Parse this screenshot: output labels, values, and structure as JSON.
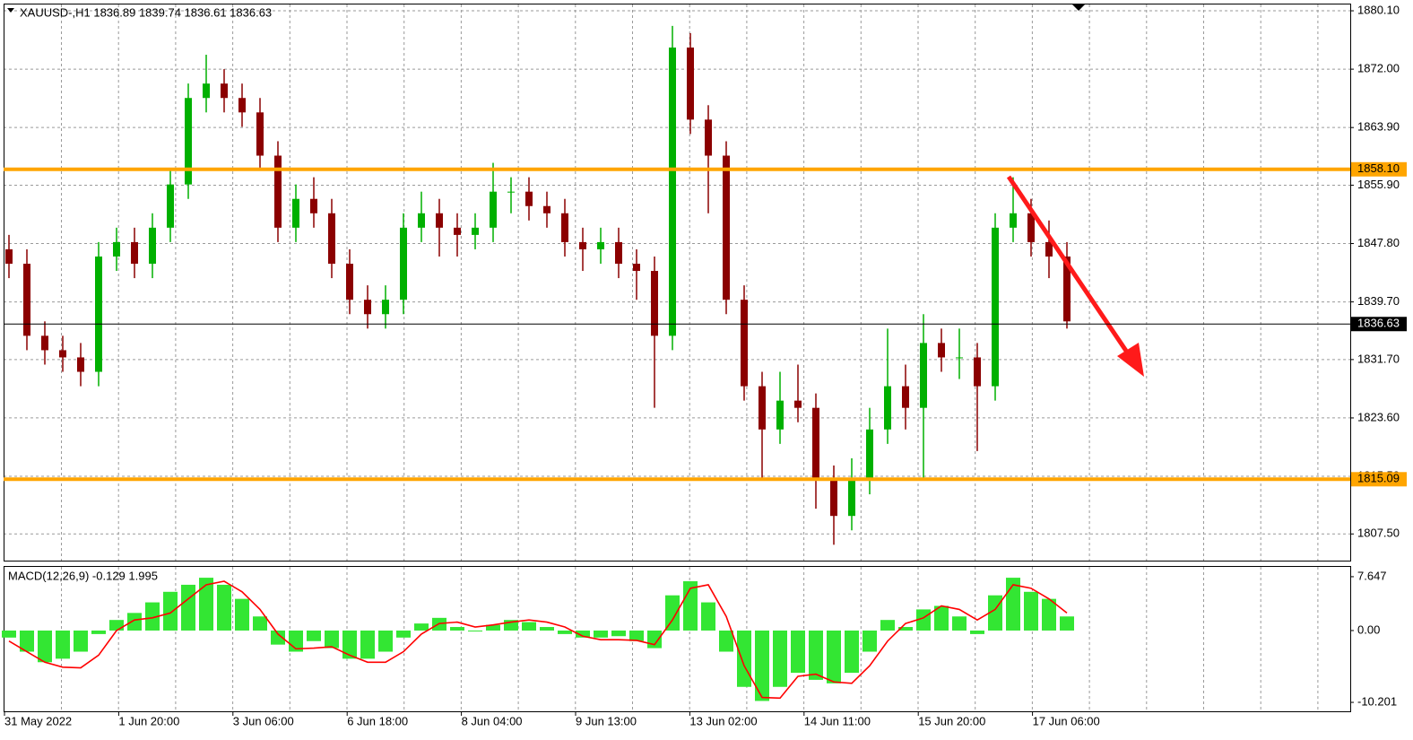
{
  "chart_data": [
    {
      "type": "candlestick",
      "title": "XAUUSD-,H1  1836.89 1839.74 1836.61 1836.63",
      "up_color": "#00b000",
      "down_color": "#8b0000",
      "open": [
        1847,
        1845,
        1835,
        1833,
        1832,
        1830,
        1846,
        1848,
        1845,
        1850,
        1856,
        1868,
        1870,
        1868,
        1866,
        1860,
        1850,
        1854,
        1852,
        1845,
        1840,
        1838,
        1840,
        1850,
        1852,
        1850,
        1849,
        1850,
        1855,
        1855,
        1853,
        1852,
        1848,
        1847,
        1848,
        1845,
        1844,
        1835,
        1875,
        1865,
        1860,
        1840,
        1828,
        1822,
        1826,
        1825,
        1815,
        1810,
        1815,
        1822,
        1828,
        1825,
        1834,
        1832,
        1832,
        1828,
        1850,
        1852,
        1848,
        1846
      ],
      "high": [
        1849,
        1847,
        1837,
        1835,
        1834,
        1848,
        1850,
        1850,
        1852,
        1858,
        1870,
        1874,
        1872,
        1870,
        1868,
        1862,
        1856,
        1857,
        1854,
        1847,
        1842,
        1842,
        1852,
        1855,
        1854,
        1852,
        1852,
        1859,
        1857,
        1857,
        1855,
        1854,
        1850,
        1850,
        1850,
        1847,
        1846,
        1878,
        1877,
        1867,
        1862,
        1842,
        1830,
        1830,
        1831,
        1827,
        1817,
        1818,
        1825,
        1836,
        1831,
        1838,
        1836,
        1836,
        1834,
        1852,
        1857,
        1854,
        1851,
        1848
      ],
      "low": [
        1843,
        1833,
        1831,
        1830,
        1828,
        1828,
        1844,
        1843,
        1843,
        1848,
        1854,
        1866,
        1866,
        1864,
        1858,
        1848,
        1848,
        1850,
        1843,
        1838,
        1836,
        1836,
        1838,
        1848,
        1846,
        1846,
        1847,
        1848,
        1852,
        1851,
        1850,
        1846,
        1844,
        1845,
        1843,
        1840,
        1825,
        1833,
        1863,
        1852,
        1838,
        1826,
        1815,
        1820,
        1823,
        1811,
        1806,
        1808,
        1813,
        1820,
        1822,
        1815,
        1830,
        1829,
        1819,
        1826,
        1848,
        1846,
        1843,
        1836
      ],
      "close": [
        1845,
        1835,
        1833,
        1832,
        1830,
        1846,
        1848,
        1845,
        1850,
        1856,
        1868,
        1870,
        1868,
        1866,
        1860,
        1850,
        1854,
        1852,
        1845,
        1840,
        1838,
        1840,
        1850,
        1852,
        1850,
        1849,
        1850,
        1855,
        1855,
        1853,
        1852,
        1848,
        1847,
        1848,
        1845,
        1844,
        1835,
        1875,
        1865,
        1860,
        1840,
        1828,
        1822,
        1826,
        1825,
        1815,
        1810,
        1815,
        1822,
        1828,
        1825,
        1834,
        1832,
        1832,
        1828,
        1850,
        1852,
        1848,
        1846,
        1837
      ],
      "ylim": [
        1803.8,
        1881.1
      ],
      "yticks": [
        {
          "value": 1880.1,
          "label": "1880.10"
        },
        {
          "value": 1872,
          "label": "1872.00"
        },
        {
          "value": 1863.9,
          "label": "1863.90"
        },
        {
          "value": 1855.9,
          "label": "1855.90"
        },
        {
          "value": 1847.8,
          "label": "1847.80"
        },
        {
          "value": 1839.7,
          "label": "1839.70"
        },
        {
          "value": 1831.7,
          "label": "1831.70"
        },
        {
          "value": 1823.6,
          "label": "1823.60"
        },
        {
          "value": 1815.5,
          "label": "1815.50"
        },
        {
          "value": 1807.5,
          "label": "1807.50"
        }
      ],
      "levels": [
        {
          "value": 1858.1,
          "label": "1858.10",
          "color": "#ffa500"
        },
        {
          "value": 1815.09,
          "label": "1815.09",
          "color": "#ffa500"
        }
      ],
      "current_price": {
        "value": 1836.63,
        "label": "1836.63"
      },
      "grid": true
    },
    {
      "type": "macd",
      "title": "MACD(12,26,9) -0.129 1.995",
      "histogram_color": "#33e633",
      "signal_color": "#ff0000",
      "histogram": [
        -1,
        -3,
        -4.5,
        -4,
        -3,
        -0.5,
        1.5,
        2.5,
        4,
        5.5,
        6.5,
        7.5,
        6.5,
        4.5,
        2,
        -2,
        -3,
        -1.5,
        -2.5,
        -4,
        -4,
        -3,
        -1,
        1,
        1.8,
        0.5,
        0,
        0.8,
        1.5,
        1.2,
        0.5,
        -0.5,
        -1,
        -1,
        -0.8,
        -1.5,
        -2.5,
        5,
        7,
        4,
        -3,
        -8,
        -10,
        -8,
        -6,
        -7,
        -7.5,
        -6,
        -3,
        1.5,
        0.5,
        3,
        3.5,
        2,
        -0.5,
        5,
        7.5,
        5.5,
        4.5,
        2
      ],
      "signal": [
        -1.5,
        -3,
        -4.5,
        -5.2,
        -5.3,
        -3.5,
        0,
        1.5,
        1.8,
        2.5,
        4.5,
        6.5,
        7,
        5.5,
        3,
        -0.5,
        -2.6,
        -2.5,
        -2.3,
        -3.5,
        -4.5,
        -4.5,
        -3,
        -0.5,
        1,
        1.2,
        0.5,
        0.8,
        1.2,
        1.5,
        1.2,
        0.5,
        -0.8,
        -1.3,
        -1.3,
        -1.4,
        -2,
        1.5,
        6,
        6.5,
        2,
        -5,
        -9.5,
        -9.6,
        -6.5,
        -6.2,
        -7.3,
        -7.5,
        -5,
        -1.5,
        1,
        1.8,
        3.5,
        3,
        1.5,
        3,
        6.5,
        6,
        4.5,
        2.5
      ],
      "ylim": [
        -11.47,
        9.04
      ],
      "yticks": [
        7.647,
        {
          "value": 0,
          "label": "0.00"
        },
        -10.201
      ],
      "x_labels": [
        "31 May 2022",
        "1 Jun 20:00",
        "3 Jun 06:00",
        "6 Jun 18:00",
        "8 Jun 04:00",
        "9 Jun 13:00",
        "13 Jun 02:00",
        "14 Jun 11:00",
        "15 Jun 20:00",
        "17 Jun 06:00"
      ]
    }
  ]
}
